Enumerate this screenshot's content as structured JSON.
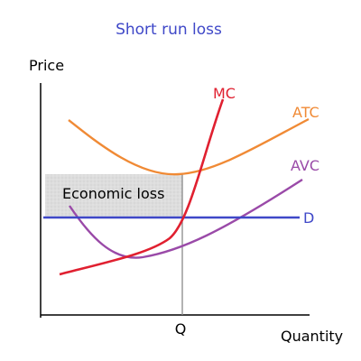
{
  "title": "Short run loss",
  "y_axis_label": "Price",
  "x_axis_label": "Quantity",
  "q_label": "Q",
  "shaded_region_label": "Economic loss",
  "curves": {
    "mc": {
      "label": "MC",
      "color": "#e02030"
    },
    "atc": {
      "label": "ATC",
      "color": "#f08a35"
    },
    "avc": {
      "label": "AVC",
      "color": "#9a4aa8"
    },
    "d": {
      "label": "D",
      "color": "#3f48c8"
    }
  },
  "colors": {
    "title": "#3f48c8",
    "axis": "#000000",
    "text": "#000000",
    "loss_fill": "#d8d8d8",
    "guide_line": "#8a8a8a"
  }
}
